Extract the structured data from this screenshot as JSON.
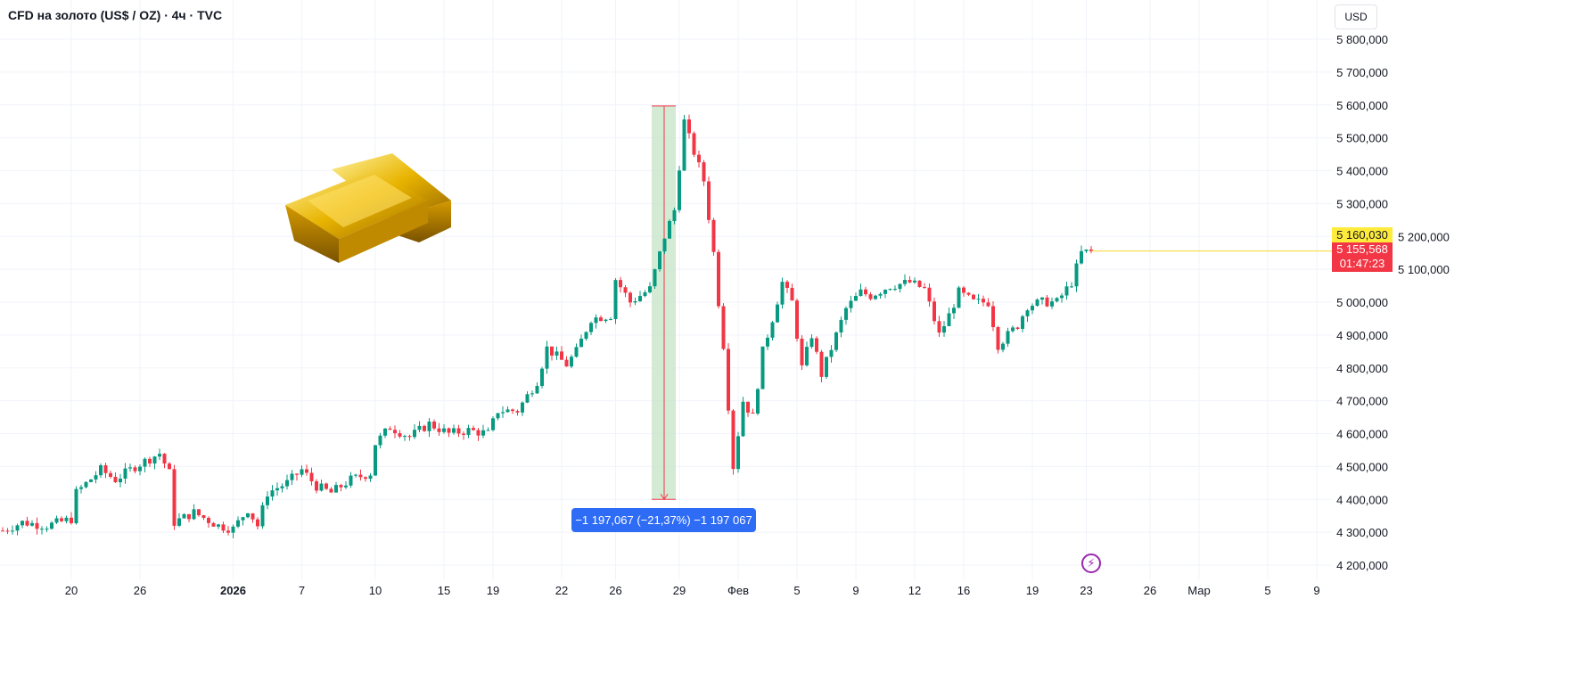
{
  "header": {
    "title": "CFD на золото (US$ / OZ) · 4ч · TVC",
    "currency_button": "USD"
  },
  "colors": {
    "up": "#089981",
    "down": "#f23645",
    "measure_fill": "#c8e6c9",
    "measure_label": "#2f6cf6",
    "price_line": "#f7d52d"
  },
  "price_labels": {
    "high": "5 160,030",
    "last": "5 155,568",
    "countdown": "01:47:23"
  },
  "measure": {
    "label": "−1 197,067 (−21,37%) −1 197 067",
    "from": 5597,
    "to": 4400
  },
  "icons": {
    "events": "lightning-icon"
  },
  "chart_data": {
    "type": "candlestick",
    "title": "CFD на золото (US$ / OZ) · 4ч · TVC",
    "ylim": [
      4200,
      5800
    ],
    "y_ticks": [
      "5 800,000",
      "5 700,000",
      "5 600,000",
      "5 500,000",
      "5 400,000",
      "5 300,000",
      "5 200,000",
      "5 100,000",
      "5 000,000",
      "4 900,000",
      "4 800,000",
      "4 700,000",
      "4 600,000",
      "4 500,000",
      "4 400,000",
      "4 300,000",
      "4 200,000"
    ],
    "y_tick_values": [
      5800,
      5700,
      5600,
      5500,
      5400,
      5300,
      5200,
      5100,
      5000,
      4900,
      4800,
      4700,
      4600,
      4500,
      4400,
      4300,
      4200
    ],
    "x_ticks": [
      {
        "label": "20",
        "candle": 14
      },
      {
        "label": "26",
        "candle": 28
      },
      {
        "label": "2026",
        "candle": 47,
        "bold": true
      },
      {
        "label": "7",
        "candle": 61
      },
      {
        "label": "10",
        "candle": 76
      },
      {
        "label": "15",
        "candle": 90
      },
      {
        "label": "19",
        "candle": 100
      },
      {
        "label": "22",
        "candle": 114
      },
      {
        "label": "26",
        "candle": 125
      },
      {
        "label": "29",
        "candle": 138
      },
      {
        "label": "Фев",
        "candle": 150
      },
      {
        "label": "5",
        "candle": 162
      },
      {
        "label": "9",
        "candle": 174
      },
      {
        "label": "12",
        "candle": 186
      },
      {
        "label": "16",
        "candle": 196
      },
      {
        "label": "19",
        "candle": 210
      },
      {
        "label": "23",
        "candle": 221
      },
      {
        "label": "26",
        "candle": 234
      },
      {
        "label": "Мар",
        "candle": 244
      },
      {
        "label": "5",
        "candle": 258
      },
      {
        "label": "9",
        "candle": 268
      }
    ],
    "close_path": [
      [
        0,
        4305
      ],
      [
        4,
        4330
      ],
      [
        9,
        4320
      ],
      [
        14,
        4340
      ],
      [
        15,
        4420
      ],
      [
        20,
        4490
      ],
      [
        23,
        4460
      ],
      [
        27,
        4500
      ],
      [
        32,
        4540
      ],
      [
        34,
        4480
      ],
      [
        35,
        4330
      ],
      [
        39,
        4360
      ],
      [
        44,
        4320
      ],
      [
        47,
        4310
      ],
      [
        50,
        4370
      ],
      [
        52,
        4320
      ],
      [
        54,
        4420
      ],
      [
        58,
        4450
      ],
      [
        61,
        4490
      ],
      [
        64,
        4440
      ],
      [
        67,
        4420
      ],
      [
        71,
        4460
      ],
      [
        75,
        4480
      ],
      [
        76,
        4570
      ],
      [
        79,
        4620
      ],
      [
        83,
        4590
      ],
      [
        87,
        4630
      ],
      [
        91,
        4600
      ],
      [
        95,
        4610
      ],
      [
        99,
        4600
      ],
      [
        101,
        4670
      ],
      [
        105,
        4670
      ],
      [
        109,
        4760
      ],
      [
        111,
        4860
      ],
      [
        115,
        4810
      ],
      [
        117,
        4850
      ],
      [
        120,
        4950
      ],
      [
        124,
        4960
      ],
      [
        125,
        5070
      ],
      [
        128,
        5000
      ],
      [
        132,
        5040
      ],
      [
        135,
        5200
      ],
      [
        137,
        5280
      ],
      [
        139,
        5550
      ],
      [
        140,
        5500
      ],
      [
        143,
        5370
      ],
      [
        145,
        5150
      ],
      [
        146,
        5000
      ],
      [
        147,
        4870
      ],
      [
        149,
        4500
      ],
      [
        151,
        4700
      ],
      [
        153,
        4650
      ],
      [
        155,
        4850
      ],
      [
        157,
        4950
      ],
      [
        159,
        5060
      ],
      [
        161,
        5000
      ],
      [
        163,
        4800
      ],
      [
        165,
        4900
      ],
      [
        167,
        4780
      ],
      [
        170,
        4900
      ],
      [
        172,
        4980
      ],
      [
        175,
        5030
      ],
      [
        177,
        5020
      ],
      [
        181,
        5050
      ],
      [
        185,
        5060
      ],
      [
        188,
        5040
      ],
      [
        191,
        4900
      ],
      [
        193,
        4960
      ],
      [
        195,
        5030
      ],
      [
        198,
        5000
      ],
      [
        201,
        5000
      ],
      [
        203,
        4870
      ],
      [
        205,
        4900
      ],
      [
        207,
        4930
      ],
      [
        209,
        4990
      ],
      [
        212,
        5000
      ],
      [
        215,
        5000
      ],
      [
        218,
        5060
      ],
      [
        220,
        5150
      ],
      [
        222,
        5155
      ]
    ]
  }
}
